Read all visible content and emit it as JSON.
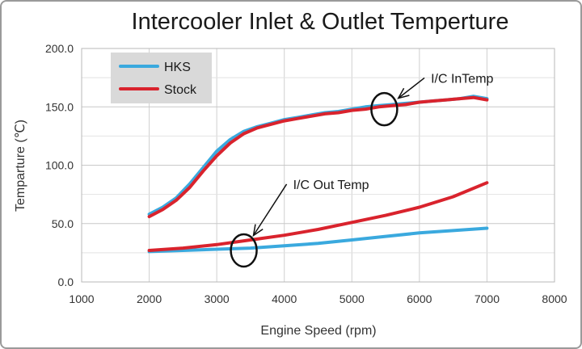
{
  "chart_data": {
    "type": "line",
    "title": "Intercooler Inlet & Outlet Temperture",
    "xlabel": "Engine Speed (rpm)",
    "ylabel": "Temparture (℃)",
    "xlim": [
      1000,
      8000
    ],
    "ylim": [
      0,
      200
    ],
    "x_ticks": [
      "1000",
      "2000",
      "3000",
      "4000",
      "5000",
      "6000",
      "7000",
      "8000"
    ],
    "y_ticks": [
      "0.0",
      "50.0",
      "100.0",
      "150.0",
      "200.0"
    ],
    "grid": true,
    "legend_position": "top-left",
    "series": [
      {
        "name": "HKS",
        "measurement": "I/C In",
        "color": "#3aa9de",
        "show_in_legend": true,
        "x": [
          2000,
          2200,
          2400,
          2600,
          2800,
          3000,
          3200,
          3400,
          3600,
          3800,
          4000,
          4200,
          4400,
          4600,
          4800,
          5000,
          5200,
          5400,
          5600,
          5800,
          6000,
          6200,
          6400,
          6600,
          6800,
          7000
        ],
        "y": [
          58,
          64,
          72,
          84,
          98,
          112,
          122,
          129,
          133,
          136,
          139,
          141,
          143,
          145,
          146,
          148,
          150,
          151,
          152,
          153,
          154,
          155,
          156,
          157,
          159,
          157
        ]
      },
      {
        "name": "Stock",
        "measurement": "I/C In",
        "color": "#d9232d",
        "show_in_legend": true,
        "x": [
          2000,
          2200,
          2400,
          2600,
          2800,
          3000,
          3200,
          3400,
          3600,
          3800,
          4000,
          4200,
          4400,
          4600,
          4800,
          5000,
          5200,
          5400,
          5600,
          5800,
          6000,
          6200,
          6400,
          6600,
          6800,
          7000
        ],
        "y": [
          56,
          62,
          70,
          81,
          95,
          108,
          119,
          127,
          132,
          135,
          138,
          140,
          142,
          144,
          145,
          147,
          148,
          150,
          151,
          152,
          154,
          155,
          156,
          157,
          158,
          156
        ]
      },
      {
        "name": "HKS",
        "measurement": "I/C Out",
        "color": "#3aa9de",
        "show_in_legend": false,
        "x": [
          2000,
          2500,
          3000,
          3500,
          4000,
          4500,
          5000,
          5500,
          6000,
          6500,
          7000
        ],
        "y": [
          26,
          27,
          28,
          29,
          31,
          33,
          36,
          39,
          42,
          44,
          46
        ]
      },
      {
        "name": "Stock",
        "measurement": "I/C Out",
        "color": "#d9232d",
        "show_in_legend": false,
        "x": [
          2000,
          2500,
          3000,
          3500,
          4000,
          4500,
          5000,
          5500,
          6000,
          6500,
          7000
        ],
        "y": [
          27,
          29,
          32,
          36,
          40,
          45,
          51,
          57,
          64,
          73,
          85
        ]
      }
    ],
    "annotations": [
      {
        "text": "I/C InTemp",
        "ellipse_center": [
          5480,
          148
        ],
        "text_anchor": [
          6170,
          172
        ]
      },
      {
        "text": "I/C Out Temp",
        "ellipse_center": [
          3400,
          27
        ],
        "text_anchor": [
          4130,
          81
        ]
      }
    ]
  }
}
